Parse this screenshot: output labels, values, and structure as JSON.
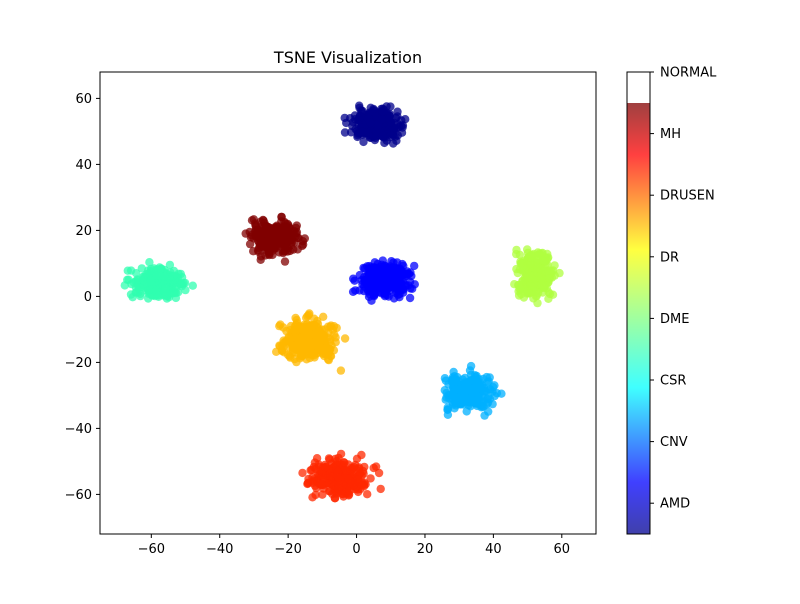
{
  "chart_data": {
    "type": "scatter",
    "title": "TSNE Visualization",
    "xlabel": "",
    "ylabel": "",
    "xlim": [
      -75,
      70
    ],
    "ylim": [
      -72,
      68
    ],
    "x_ticks": [
      -60,
      -40,
      -20,
      0,
      20,
      40,
      60
    ],
    "x_tick_labels": [
      "−60",
      "−40",
      "−20",
      "0",
      "20",
      "40",
      "60"
    ],
    "y_ticks": [
      -60,
      -40,
      -20,
      0,
      20,
      40,
      60
    ],
    "y_tick_labels": [
      "−60",
      "−40",
      "−20",
      "0",
      "20",
      "40",
      "60"
    ],
    "grid": false,
    "colorbar": {
      "colormap": "jet",
      "labels": [
        "AMD",
        "CNV",
        "CSR",
        "DME",
        "DR",
        "DRUSEN",
        "MH",
        "NORMAL"
      ]
    },
    "clusters": [
      {
        "label": "AMD",
        "color": "#00008b",
        "center": [
          6,
          52
        ],
        "spread": [
          8,
          5
        ]
      },
      {
        "label": "CNV",
        "color": "#0000ff",
        "center": [
          8,
          5
        ],
        "spread": [
          8,
          6
        ]
      },
      {
        "label": "CSR",
        "color": "#00b0ff",
        "center": [
          33,
          -29
        ],
        "spread": [
          8,
          6
        ]
      },
      {
        "label": "DME",
        "color": "#30ffb0",
        "center": [
          -58,
          4
        ],
        "spread": [
          8,
          5
        ]
      },
      {
        "label": "DR",
        "color": "#b0ff40",
        "center": [
          52,
          7
        ],
        "spread": [
          6,
          8
        ]
      },
      {
        "label": "DRUSEN",
        "color": "#ffb800",
        "center": [
          -14,
          -13
        ],
        "spread": [
          9,
          7
        ]
      },
      {
        "label": "MH",
        "color": "#ff2800",
        "center": [
          -5,
          -55
        ],
        "spread": [
          9,
          6
        ]
      },
      {
        "label": "NORMAL",
        "color": "#800000",
        "center": [
          -24,
          18
        ],
        "spread": [
          8,
          6
        ]
      }
    ]
  }
}
